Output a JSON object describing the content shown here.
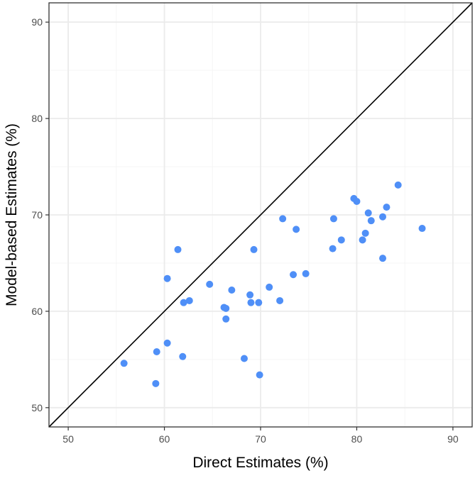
{
  "chart_data": {
    "type": "scatter",
    "title": "",
    "xlabel": "Direct Estimates (%)",
    "ylabel": "Model-based Estimates (%)",
    "xlim": [
      48,
      92
    ],
    "ylim": [
      48,
      92
    ],
    "x_ticks": [
      50,
      60,
      70,
      80,
      90
    ],
    "y_ticks": [
      50,
      60,
      70,
      80,
      90
    ],
    "x_tick_labels": [
      "50",
      "60",
      "70",
      "80",
      "90"
    ],
    "y_tick_labels": [
      "50",
      "60",
      "70",
      "80",
      "90"
    ],
    "grid": true,
    "reference_line": "y = x",
    "colors": {
      "points": "#4f8ff7",
      "line": "#000000",
      "grid_major": "#ebebeb",
      "grid_minor": "#f5f5f5",
      "panel_border": "#333333"
    },
    "series": [
      {
        "name": "estimates",
        "points": [
          [
            55.8,
            54.6
          ],
          [
            59.1,
            52.5
          ],
          [
            59.2,
            55.8
          ],
          [
            60.3,
            56.7
          ],
          [
            60.3,
            63.4
          ],
          [
            61.4,
            66.4
          ],
          [
            61.9,
            55.3
          ],
          [
            62.0,
            60.9
          ],
          [
            62.6,
            61.1
          ],
          [
            64.7,
            62.8
          ],
          [
            66.2,
            60.4
          ],
          [
            66.4,
            60.3
          ],
          [
            66.4,
            59.2
          ],
          [
            67.0,
            62.2
          ],
          [
            68.3,
            55.1
          ],
          [
            68.9,
            61.7
          ],
          [
            69.0,
            60.9
          ],
          [
            69.3,
            66.4
          ],
          [
            69.8,
            60.9
          ],
          [
            69.9,
            53.4
          ],
          [
            70.9,
            62.5
          ],
          [
            72.0,
            61.1
          ],
          [
            72.3,
            69.6
          ],
          [
            73.4,
            63.8
          ],
          [
            73.7,
            68.5
          ],
          [
            74.7,
            63.9
          ],
          [
            77.5,
            66.5
          ],
          [
            77.6,
            69.6
          ],
          [
            78.4,
            67.4
          ],
          [
            79.7,
            71.7
          ],
          [
            80.0,
            71.4
          ],
          [
            80.6,
            67.4
          ],
          [
            80.9,
            68.1
          ],
          [
            81.2,
            70.2
          ],
          [
            81.5,
            69.4
          ],
          [
            82.7,
            69.8
          ],
          [
            82.7,
            65.5
          ],
          [
            83.1,
            70.8
          ],
          [
            84.3,
            73.1
          ],
          [
            86.8,
            68.6
          ]
        ]
      }
    ]
  }
}
